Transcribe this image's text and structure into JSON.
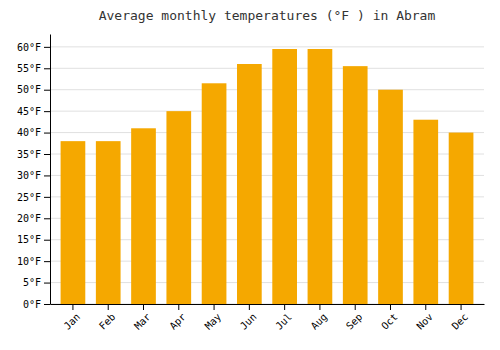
{
  "chart_data": {
    "type": "bar",
    "title": "Average monthly temperatures (°F ) in Abram",
    "categories": [
      "Jan",
      "Feb",
      "Mar",
      "Apr",
      "May",
      "Jun",
      "Jul",
      "Aug",
      "Sep",
      "Oct",
      "Nov",
      "Dec"
    ],
    "values": [
      38,
      38,
      41,
      45,
      51.5,
      56,
      59.5,
      59.5,
      55.5,
      50,
      43,
      40
    ],
    "color": "#F5A800",
    "ylim": [
      0,
      63
    ],
    "yticks": [
      {
        "value": 0,
        "label": "0°F"
      },
      {
        "value": 5,
        "label": "5°F"
      },
      {
        "value": 10,
        "label": "10°F"
      },
      {
        "value": 15,
        "label": "15°F"
      },
      {
        "value": 20,
        "label": "20°F"
      },
      {
        "value": 25,
        "label": "25°F"
      },
      {
        "value": 30,
        "label": "30°F"
      },
      {
        "value": 35,
        "label": "35°F"
      },
      {
        "value": 40,
        "label": "40°F"
      },
      {
        "value": 45,
        "label": "45°F"
      },
      {
        "value": 50,
        "label": "50°F"
      },
      {
        "value": 55,
        "label": "55°F"
      },
      {
        "value": 60,
        "label": "60°F"
      }
    ],
    "grid": true
  }
}
